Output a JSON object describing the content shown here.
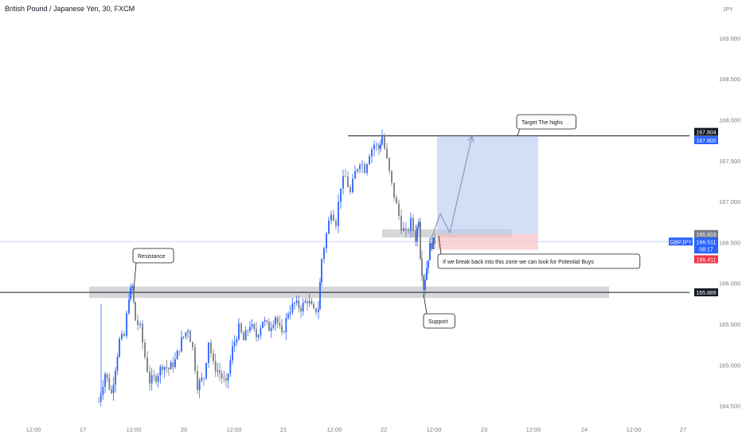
{
  "chart_data": {
    "type": "candlestick",
    "title": "British Pound / Japanese Yen, 30, FXCM",
    "symbol": "GBPJPY",
    "price_unit": "JPY",
    "ylim": [
      164.35,
      169.35
    ],
    "xlim": [
      0,
      932
    ],
    "y_ticks": [
      "164.500",
      "165.000",
      "165.500",
      "166.000",
      "166.500",
      "167.000",
      "167.500",
      "168.000",
      "168.500",
      "169.000"
    ],
    "x_ticks": [
      {
        "label": "12:00",
        "x": 42
      },
      {
        "label": "17",
        "x": 104
      },
      {
        "label": "12:00",
        "x": 168
      },
      {
        "label": "20",
        "x": 231
      },
      {
        "label": "12:00",
        "x": 294
      },
      {
        "label": "21",
        "x": 356
      },
      {
        "label": "12:00",
        "x": 420
      },
      {
        "label": "22",
        "x": 482
      },
      {
        "label": "12:00",
        "x": 545
      },
      {
        "label": "23",
        "x": 608
      },
      {
        "label": "12:00",
        "x": 670
      },
      {
        "label": "24",
        "x": 734
      },
      {
        "label": "12:00",
        "x": 796
      },
      {
        "label": "27",
        "x": 858
      }
    ],
    "horizontal_levels": [
      {
        "price": 165.889,
        "label": "165.889",
        "type": "line",
        "color": "#131722"
      },
      {
        "price": 167.804,
        "label": "167.804",
        "type": "line",
        "color": "#131722"
      }
    ],
    "price_labels": [
      {
        "price": 167.804,
        "text": "167.804",
        "bg": "#131722",
        "fg": "#ffffff"
      },
      {
        "price": 167.8,
        "text": "167.800",
        "bg": "#2962ff",
        "fg": "#ffffff"
      },
      {
        "price": 166.603,
        "text": "166.603",
        "bg": "#787b86",
        "fg": "#ffffff"
      },
      {
        "price": 166.511,
        "text": "166.511",
        "bg": "#2962ff",
        "fg": "#ffffff",
        "sub": "08:17",
        "badge": "GBPJPY"
      },
      {
        "price": 166.411,
        "text": "166.411",
        "bg": "#f23645",
        "fg": "#ffffff"
      },
      {
        "price": 165.889,
        "text": "165.889",
        "bg": "#131722",
        "fg": "#ffffff"
      }
    ],
    "current_price": 166.511,
    "position": {
      "x_start": 549,
      "x_end": 676,
      "entry": 166.603,
      "target": 167.8,
      "stop": 166.411
    },
    "zones": [
      {
        "x_start": 112,
        "x_end": 765,
        "price_top": 165.96,
        "price_bottom": 165.82
      },
      {
        "x_start": 480,
        "x_end": 643,
        "price_top": 166.66,
        "price_bottom": 166.56
      }
    ],
    "projection_path": [
      {
        "x": 540,
        "price": 166.5
      },
      {
        "x": 553,
        "price": 166.85
      },
      {
        "x": 565,
        "price": 166.62
      },
      {
        "x": 593,
        "price": 167.8
      }
    ],
    "annotations": [
      {
        "text": "Resistance",
        "x": 173,
        "y": 322,
        "price_anchor": 165.92,
        "anchor_x": 168
      },
      {
        "text": "Target The highs",
        "x": 655,
        "y": 154,
        "price_anchor": 167.81,
        "anchor_x": 650
      },
      {
        "text": "If we break back into this zone we can look for Potential Buys",
        "x": 556,
        "y": 329,
        "price_anchor": 166.58,
        "anchor_x": 551
      },
      {
        "text": "Support",
        "x": 538,
        "y": 404,
        "price_anchor": 165.87,
        "anchor_x": 532
      }
    ],
    "bull_color": "#2962ff",
    "bear_color": "#787b86",
    "grid": false
  }
}
